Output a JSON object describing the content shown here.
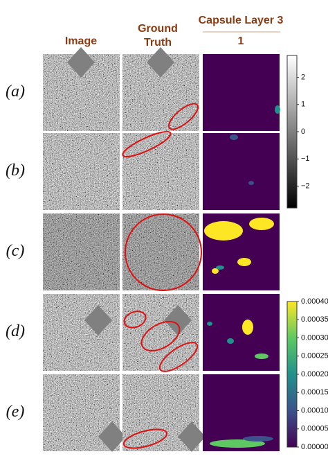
{
  "headers": {
    "image": "Image",
    "ground_truth": [
      "Ground",
      "Truth"
    ],
    "capsule": "Capsule Layer 3",
    "capsule_index": "1"
  },
  "rows": [
    "(a)",
    "(b)",
    "(c)",
    "(d)",
    "(e)"
  ],
  "colorbars": [
    {
      "lim": [
        -2.8,
        2.8
      ],
      "ticks": [
        2,
        1,
        0,
        {
          "value": -1,
          "label": "−1"
        },
        {
          "value": -2,
          "label": "−2"
        }
      ]
    },
    {
      "lim": [
        0,
        0.0004
      ],
      "ticks": [
        {
          "value": 0.0004,
          "label": "0.00040"
        },
        {
          "value": 0.00035,
          "label": "0.00035"
        },
        {
          "value": 0.0003,
          "label": "0.00030"
        },
        {
          "value": 0.00025,
          "label": "0.00025"
        },
        {
          "value": 0.0002,
          "label": "0.00020"
        },
        {
          "value": 0.00015,
          "label": "0.00015"
        },
        {
          "value": 0.0001,
          "label": "0.00010"
        },
        {
          "value": 5e-05,
          "label": "0.00005"
        },
        {
          "value": 0,
          "label": "0.00000"
        }
      ]
    }
  ]
}
